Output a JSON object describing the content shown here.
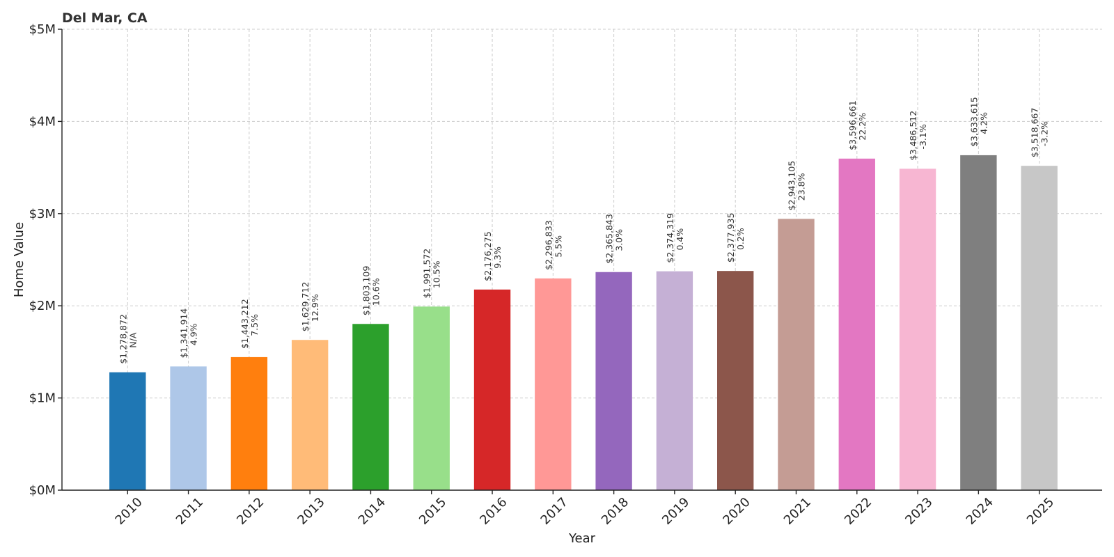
{
  "chart_data": {
    "type": "bar",
    "title": "Del Mar, CA",
    "xlabel": "Year",
    "ylabel": "Home Value",
    "ylim": [
      0,
      5000000
    ],
    "yticks": [
      0,
      1000000,
      2000000,
      3000000,
      4000000,
      5000000
    ],
    "ytick_labels": [
      "$0M",
      "$1M",
      "$2M",
      "$3M",
      "$4M",
      "$5M"
    ],
    "grid": true,
    "categories": [
      "2010",
      "2011",
      "2012",
      "2013",
      "2014",
      "2015",
      "2016",
      "2017",
      "2018",
      "2019",
      "2020",
      "2021",
      "2022",
      "2023",
      "2024",
      "2025"
    ],
    "values": [
      1278872,
      1341914,
      1443212,
      1629712,
      1803109,
      1991572,
      2176275,
      2296833,
      2365843,
      2374319,
      2377935,
      2943105,
      3596661,
      3486512,
      3633615,
      3518667
    ],
    "value_labels": [
      "$1,278,872",
      "$1,341,914",
      "$1,443,212",
      "$1,629,712",
      "$1,803,109",
      "$1,991,572",
      "$2,176,275",
      "$2,296,833",
      "$2,365,843",
      "$2,374,319",
      "$2,377,935",
      "$2,943,105",
      "$3,596,661",
      "$3,486,512",
      "$3,633,615",
      "$3,518,667"
    ],
    "change_labels": [
      "N/A",
      "4.9%",
      "7.5%",
      "12.9%",
      "10.6%",
      "10.5%",
      "9.3%",
      "5.5%",
      "3.0%",
      "0.4%",
      "0.2%",
      "23.8%",
      "22.2%",
      "-3.1%",
      "4.2%",
      "-3.2%"
    ],
    "colors": [
      "#1f77b4",
      "#aec7e8",
      "#ff7f0e",
      "#ffbb78",
      "#2ca02c",
      "#98df8a",
      "#d62728",
      "#ff9896",
      "#9467bd",
      "#c5b0d5",
      "#8c564b",
      "#c49c94",
      "#e377c2",
      "#f7b6d2",
      "#7f7f7f",
      "#c7c7c7"
    ]
  }
}
